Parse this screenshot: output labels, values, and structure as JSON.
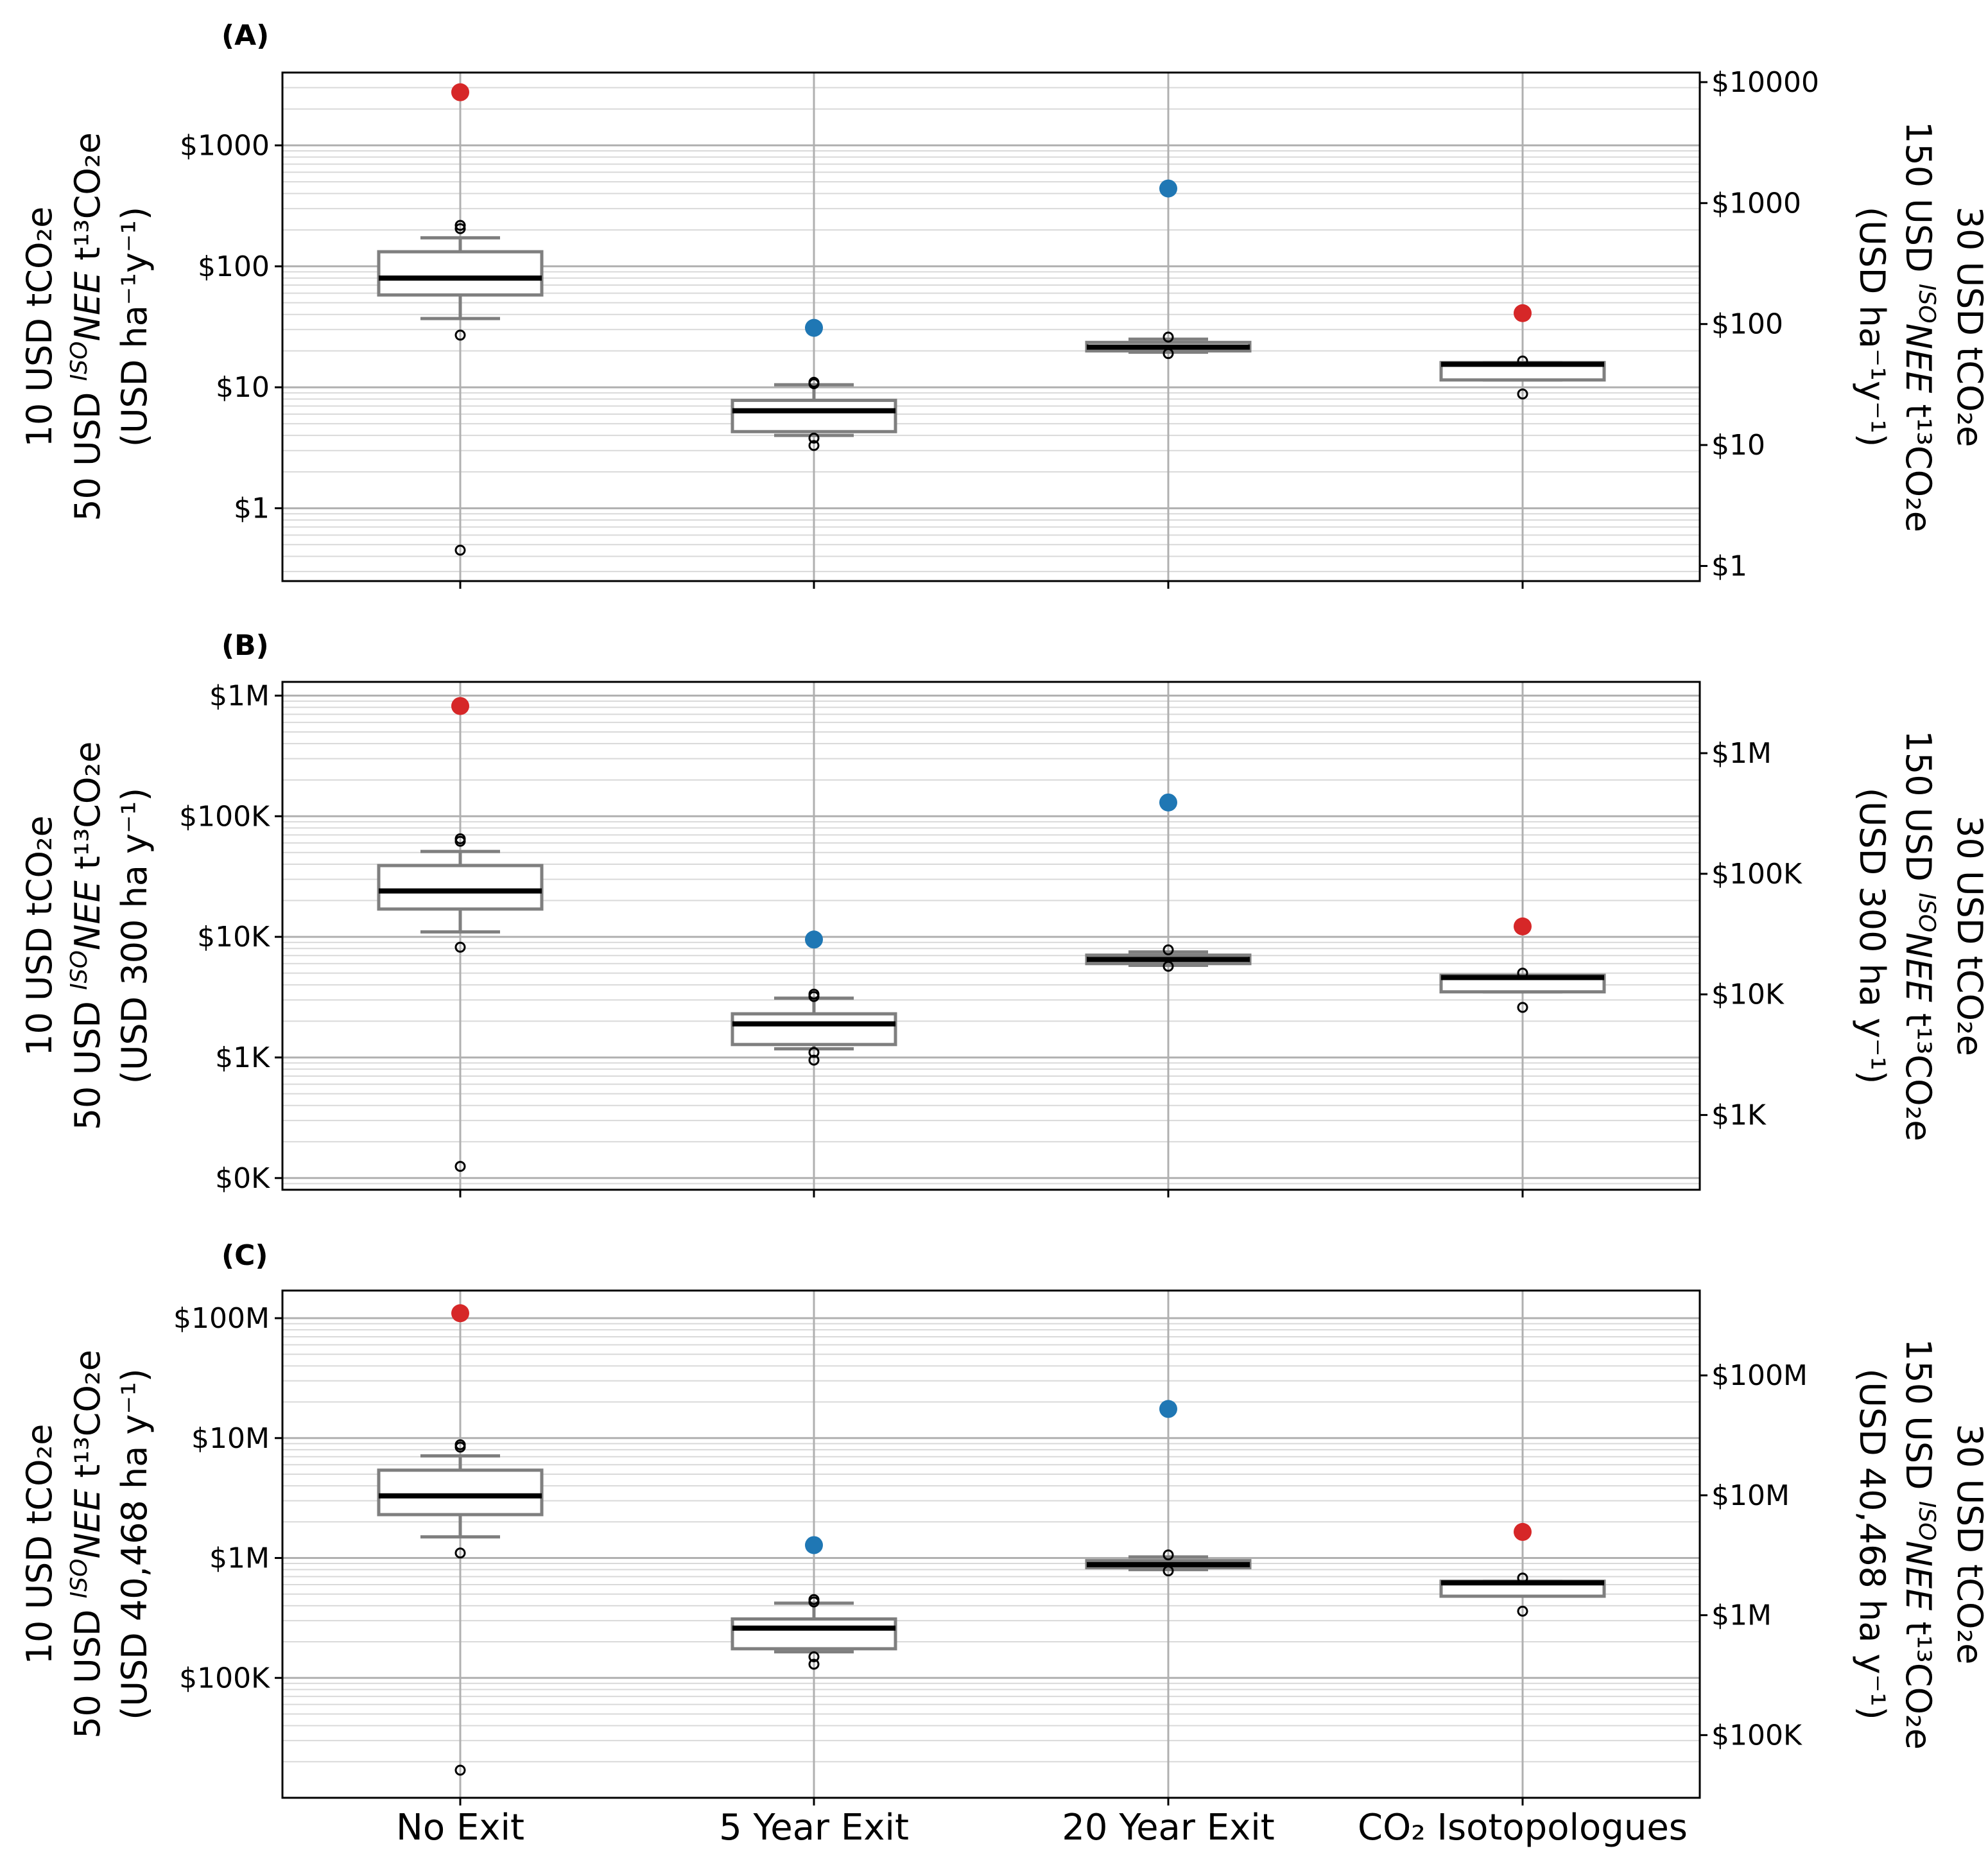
{
  "categories": [
    "No Exit",
    "5 Year Exit",
    "20 Year Exit",
    "CO₂ Isotopologues"
  ],
  "colors": {
    "red": "#d62728",
    "blue": "#1f77b4",
    "box": "#7f7f7f",
    "median": "#000000",
    "grid": "#b0b0b0"
  },
  "chart_data": [
    {
      "type": "box",
      "panel_label": "(A)",
      "scale": "log",
      "ylabel_left": [
        "10 USD tCO₂e",
        "50 USD ISONEE t¹³CO₂e",
        "(USD ha⁻¹y⁻¹)"
      ],
      "ylabel_right": [
        "30 USD tCO₂e",
        "150 USD ISONEE t¹³CO₂e",
        "(USD ha⁻¹y⁻¹)"
      ],
      "ylim": [
        0.25,
        4000
      ],
      "left_ticks": [
        {
          "v": 1,
          "label": "$1"
        },
        {
          "v": 10,
          "label": "$10"
        },
        {
          "v": 100,
          "label": "$100"
        },
        {
          "v": 1000,
          "label": "$1000"
        }
      ],
      "right_ticks": [
        {
          "v": 0.3333,
          "label": "$1"
        },
        {
          "v": 3.333,
          "label": "$10"
        },
        {
          "v": 33.33,
          "label": "$100"
        },
        {
          "v": 333.3,
          "label": "$1000"
        },
        {
          "v": 3333,
          "label": "$10000"
        }
      ],
      "boxes": [
        {
          "category": "No Exit",
          "q1": 58,
          "median": 80,
          "q3": 132,
          "whisker_low": 37,
          "whisker_high": 172,
          "fliers": [
            27,
            205,
            218,
            0.45
          ],
          "marker": {
            "value": 2750,
            "color": "red"
          }
        },
        {
          "category": "5 Year Exit",
          "q1": 4.3,
          "median": 6.4,
          "q3": 7.8,
          "whisker_low": 4.0,
          "whisker_high": 10.5,
          "fliers": [
            3.3,
            3.8,
            10.7,
            11.0
          ],
          "marker": {
            "value": 31,
            "color": "blue"
          }
        },
        {
          "category": "20 Year Exit",
          "q1": 20,
          "median": 21.5,
          "q3": 23.5,
          "whisker_low": 19.5,
          "whisker_high": 25,
          "fliers": [
            19,
            26
          ],
          "marker": {
            "value": 440,
            "color": "blue"
          }
        },
        {
          "category": "CO₂ Isotopologues",
          "q1": 11.5,
          "median": 15.5,
          "q3": 16,
          "whisker_low": 11.5,
          "whisker_high": 16,
          "fliers": [
            16.5,
            8.8
          ],
          "marker": {
            "value": 41,
            "color": "red"
          }
        }
      ]
    },
    {
      "type": "box",
      "panel_label": "(B)",
      "scale": "log",
      "ylabel_left": [
        "10 USD tCO₂e",
        "50 USD ISONEE t¹³CO₂e",
        "(USD 300 ha y⁻¹)"
      ],
      "ylabel_right": [
        "30 USD tCO₂e",
        "150 USD ISONEE t¹³CO₂e",
        "(USD 300 ha y⁻¹)"
      ],
      "ylim": [
        80,
        1300000
      ],
      "left_ticks": [
        {
          "v": 100,
          "label": "$0K"
        },
        {
          "v": 1000,
          "label": "$1K"
        },
        {
          "v": 10000,
          "label": "$10K"
        },
        {
          "v": 100000,
          "label": "$100K"
        },
        {
          "v": 1000000,
          "label": "$1M"
        }
      ],
      "right_ticks": [
        {
          "v": 333.3,
          "label": "$1K"
        },
        {
          "v": 3333,
          "label": "$10K"
        },
        {
          "v": 33333,
          "label": "$100K"
        },
        {
          "v": 333333,
          "label": "$1M"
        }
      ],
      "boxes": [
        {
          "category": "No Exit",
          "q1": 17000,
          "median": 24000,
          "q3": 39000,
          "whisker_low": 11000,
          "whisker_high": 51000,
          "fliers": [
            8200,
            62000,
            65000,
            125
          ],
          "marker": {
            "value": 820000,
            "color": "red"
          }
        },
        {
          "category": "5 Year Exit",
          "q1": 1280,
          "median": 1900,
          "q3": 2300,
          "whisker_low": 1180,
          "whisker_high": 3100,
          "fliers": [
            950,
            1100,
            3200,
            3350
          ],
          "marker": {
            "value": 9500,
            "color": "blue"
          }
        },
        {
          "category": "20 Year Exit",
          "q1": 6000,
          "median": 6500,
          "q3": 7050,
          "whisker_low": 5800,
          "whisker_high": 7500,
          "fliers": [
            5700,
            7800
          ],
          "marker": {
            "value": 130000,
            "color": "blue"
          }
        },
        {
          "category": "CO₂ Isotopologues",
          "q1": 3500,
          "median": 4600,
          "q3": 4800,
          "whisker_low": 3500,
          "whisker_high": 4800,
          "fliers": [
            5000,
            2600
          ],
          "marker": {
            "value": 12200,
            "color": "red"
          }
        }
      ]
    },
    {
      "type": "box",
      "panel_label": "(C)",
      "scale": "log",
      "ylabel_left": [
        "10 USD tCO₂e",
        "50 USD ISONEE t¹³CO₂e",
        "(USD 40,468 ha y⁻¹)"
      ],
      "ylabel_right": [
        "30 USD tCO₂e",
        "150 USD ISONEE t¹³CO₂e",
        "(USD 40,468 ha y⁻¹)"
      ],
      "ylim": [
        10000,
        170000000
      ],
      "left_ticks": [
        {
          "v": 100000,
          "label": "$100K"
        },
        {
          "v": 1000000,
          "label": "$1M"
        },
        {
          "v": 10000000,
          "label": "$10M"
        },
        {
          "v": 100000000,
          "label": "$100M"
        }
      ],
      "right_ticks": [
        {
          "v": 33333,
          "label": "$100K"
        },
        {
          "v": 333333,
          "label": "$1M"
        },
        {
          "v": 3333333,
          "label": "$10M"
        },
        {
          "v": 33333333,
          "label": "$100M"
        }
      ],
      "boxes": [
        {
          "category": "No Exit",
          "q1": 2300000,
          "median": 3300000,
          "q3": 5400000,
          "whisker_low": 1500000,
          "whisker_high": 7100000,
          "fliers": [
            1100000,
            8400000,
            8800000,
            17000
          ],
          "marker": {
            "value": 110000000,
            "color": "red"
          }
        },
        {
          "category": "5 Year Exit",
          "q1": 175000,
          "median": 260000,
          "q3": 310000,
          "whisker_low": 165000,
          "whisker_high": 420000,
          "fliers": [
            130000,
            150000,
            430000,
            450000
          ],
          "marker": {
            "value": 1280000,
            "color": "blue"
          }
        },
        {
          "category": "20 Year Exit",
          "q1": 830000,
          "median": 880000,
          "q3": 950000,
          "whisker_low": 800000,
          "whisker_high": 1020000,
          "fliers": [
            780000,
            1060000
          ],
          "marker": {
            "value": 17500000,
            "color": "blue"
          }
        },
        {
          "category": "CO₂ Isotopologues",
          "q1": 480000,
          "median": 620000,
          "q3": 640000,
          "whisker_low": 480000,
          "whisker_high": 640000,
          "fliers": [
            680000,
            360000
          ],
          "marker": {
            "value": 1650000,
            "color": "red"
          }
        }
      ]
    }
  ]
}
